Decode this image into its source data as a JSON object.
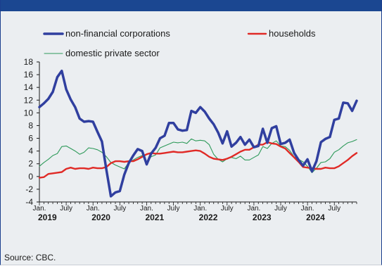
{
  "source": "Source: CBC.",
  "chart_data": {
    "type": "line",
    "title": "",
    "ylabel": "",
    "ylim": [
      -4,
      18
    ],
    "yticks": [
      -4,
      -2,
      0,
      2,
      4,
      6,
      8,
      10,
      12,
      14,
      16,
      18
    ],
    "grid": false,
    "legend_position": "top",
    "x_start": "2019-01",
    "x_end": "2024-12",
    "x_tick_labels": [
      "Jan.",
      "July",
      "Jan.",
      "July",
      "Jan.",
      "July",
      "Jan.",
      "July",
      "Jan.",
      "July",
      "Jan.",
      "July"
    ],
    "x_tick_months": [
      0,
      6,
      12,
      18,
      24,
      30,
      36,
      42,
      48,
      54,
      60,
      66
    ],
    "year_labels": [
      "2019",
      "2020",
      "2021",
      "2022",
      "2023",
      "2024"
    ],
    "year_label_months": [
      0,
      12,
      24,
      36,
      48,
      60
    ],
    "series": [
      {
        "name": "non-financial corporations",
        "color": "#303f9f",
        "values": [
          10.9,
          11.5,
          12.2,
          13.3,
          15.6,
          16.6,
          13.7,
          12.1,
          10.9,
          9.1,
          8.6,
          8.7,
          8.6,
          7.0,
          5.5,
          1.0,
          -3.1,
          -2.5,
          -2.3,
          0.3,
          2.1,
          3.3,
          4.3,
          4.0,
          1.9,
          3.6,
          4.5,
          6.0,
          6.4,
          8.4,
          8.4,
          7.4,
          7.2,
          7.3,
          10.3,
          10.0,
          10.9,
          10.2,
          9.1,
          8.2,
          6.9,
          5.2,
          7.1,
          4.7,
          5.3,
          6.2,
          5.0,
          5.8,
          4.6,
          4.8,
          7.5,
          5.3,
          7.6,
          7.9,
          5.1,
          5.3,
          5.8,
          3.7,
          2.6,
          1.7,
          2.7,
          0.8,
          2.4,
          5.4,
          5.9,
          6.2,
          8.9,
          9.1,
          11.6,
          11.5,
          10.3,
          11.9
        ]
      },
      {
        "name": "households",
        "color": "#e02a26",
        "values": [
          -0.2,
          -0.1,
          0.4,
          0.5,
          0.6,
          0.7,
          1.2,
          1.4,
          1.2,
          1.3,
          1.3,
          1.2,
          1.4,
          1.3,
          1.3,
          1.5,
          2.1,
          2.4,
          2.4,
          2.3,
          2.4,
          2.4,
          2.7,
          3.1,
          3.5,
          3.7,
          3.6,
          3.6,
          3.7,
          3.8,
          3.9,
          3.8,
          3.8,
          3.9,
          4.0,
          4.1,
          4.0,
          3.6,
          3.1,
          2.8,
          2.7,
          2.6,
          2.8,
          3.1,
          3.5,
          3.9,
          4.2,
          4.2,
          4.6,
          5.0,
          5.0,
          5.4,
          5.2,
          5.1,
          4.7,
          4.4,
          3.7,
          3.0,
          2.3,
          1.5,
          1.4,
          1.3,
          1.2,
          1.2,
          1.4,
          1.3,
          1.3,
          1.6,
          2.1,
          2.6,
          3.2,
          3.7
        ]
      },
      {
        "name": "domestic private sector",
        "color": "#2e9a5a",
        "values": [
          1.6,
          2.2,
          2.7,
          3.3,
          3.6,
          4.7,
          4.8,
          4.4,
          4.0,
          3.5,
          3.8,
          4.5,
          4.4,
          4.2,
          3.8,
          3.1,
          2.2,
          1.8,
          1.5,
          1.2,
          2.2,
          2.6,
          3.0,
          3.3,
          2.2,
          3.1,
          3.4,
          4.5,
          4.8,
          5.1,
          5.4,
          5.3,
          5.4,
          5.2,
          5.9,
          5.6,
          5.7,
          5.6,
          5.0,
          3.5,
          2.7,
          2.3,
          2.8,
          3.0,
          2.8,
          3.2,
          2.6,
          2.6,
          3.0,
          3.4,
          4.7,
          4.4,
          5.2,
          5.6,
          4.8,
          4.7,
          4.1,
          3.1,
          2.7,
          2.3,
          1.6,
          0.6,
          1.3,
          2.2,
          2.3,
          2.8,
          3.8,
          4.2,
          4.8,
          5.3,
          5.5,
          5.8
        ]
      }
    ]
  }
}
